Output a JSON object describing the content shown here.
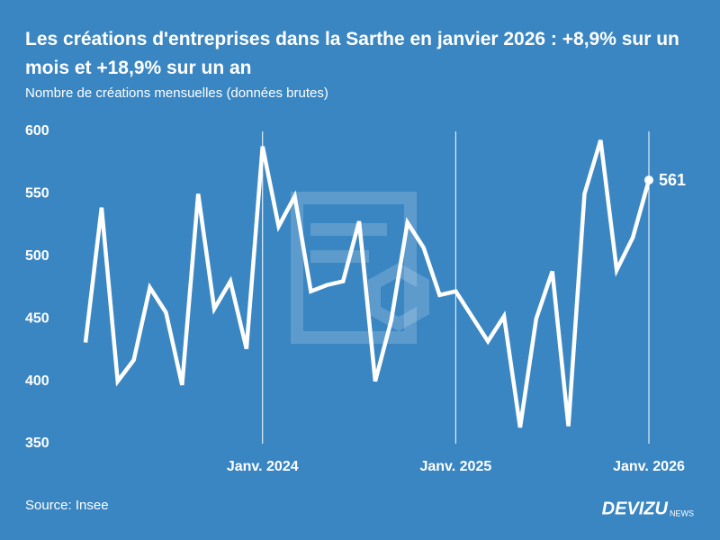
{
  "chart_data": {
    "type": "line",
    "title": "Les créations d'entreprises dans la Sarthe en janvier 2026 : +8,9% sur un mois et +18,9% sur un an",
    "subtitle": "Nombre de créations mensuelles (données brutes)",
    "categories": [
      null,
      null,
      null,
      null,
      null,
      null,
      null,
      null,
      null,
      null,
      null,
      "Janv. 2024",
      null,
      null,
      null,
      null,
      null,
      null,
      null,
      null,
      null,
      null,
      null,
      "Janv. 2025",
      null,
      null,
      null,
      null,
      null,
      null,
      null,
      null,
      null,
      null,
      null,
      "Janv. 2026"
    ],
    "series": [
      {
        "name": "Créations",
        "color": "#ffffff",
        "values": [
          431,
          539,
          400,
          417,
          475,
          455,
          397,
          550,
          458,
          480,
          426,
          588,
          524,
          548,
          472,
          477,
          480,
          528,
          400,
          449,
          527,
          507,
          469,
          472,
          452,
          432,
          452,
          363,
          450,
          488,
          364,
          550,
          593,
          489,
          515,
          561
        ]
      }
    ],
    "ylim": [
      350,
      600
    ],
    "yticks": [
      350,
      400,
      450,
      500,
      550,
      600
    ],
    "source": "Source: Insee",
    "brand": "DEVIZU",
    "brand_suffix": "NEWS"
  }
}
